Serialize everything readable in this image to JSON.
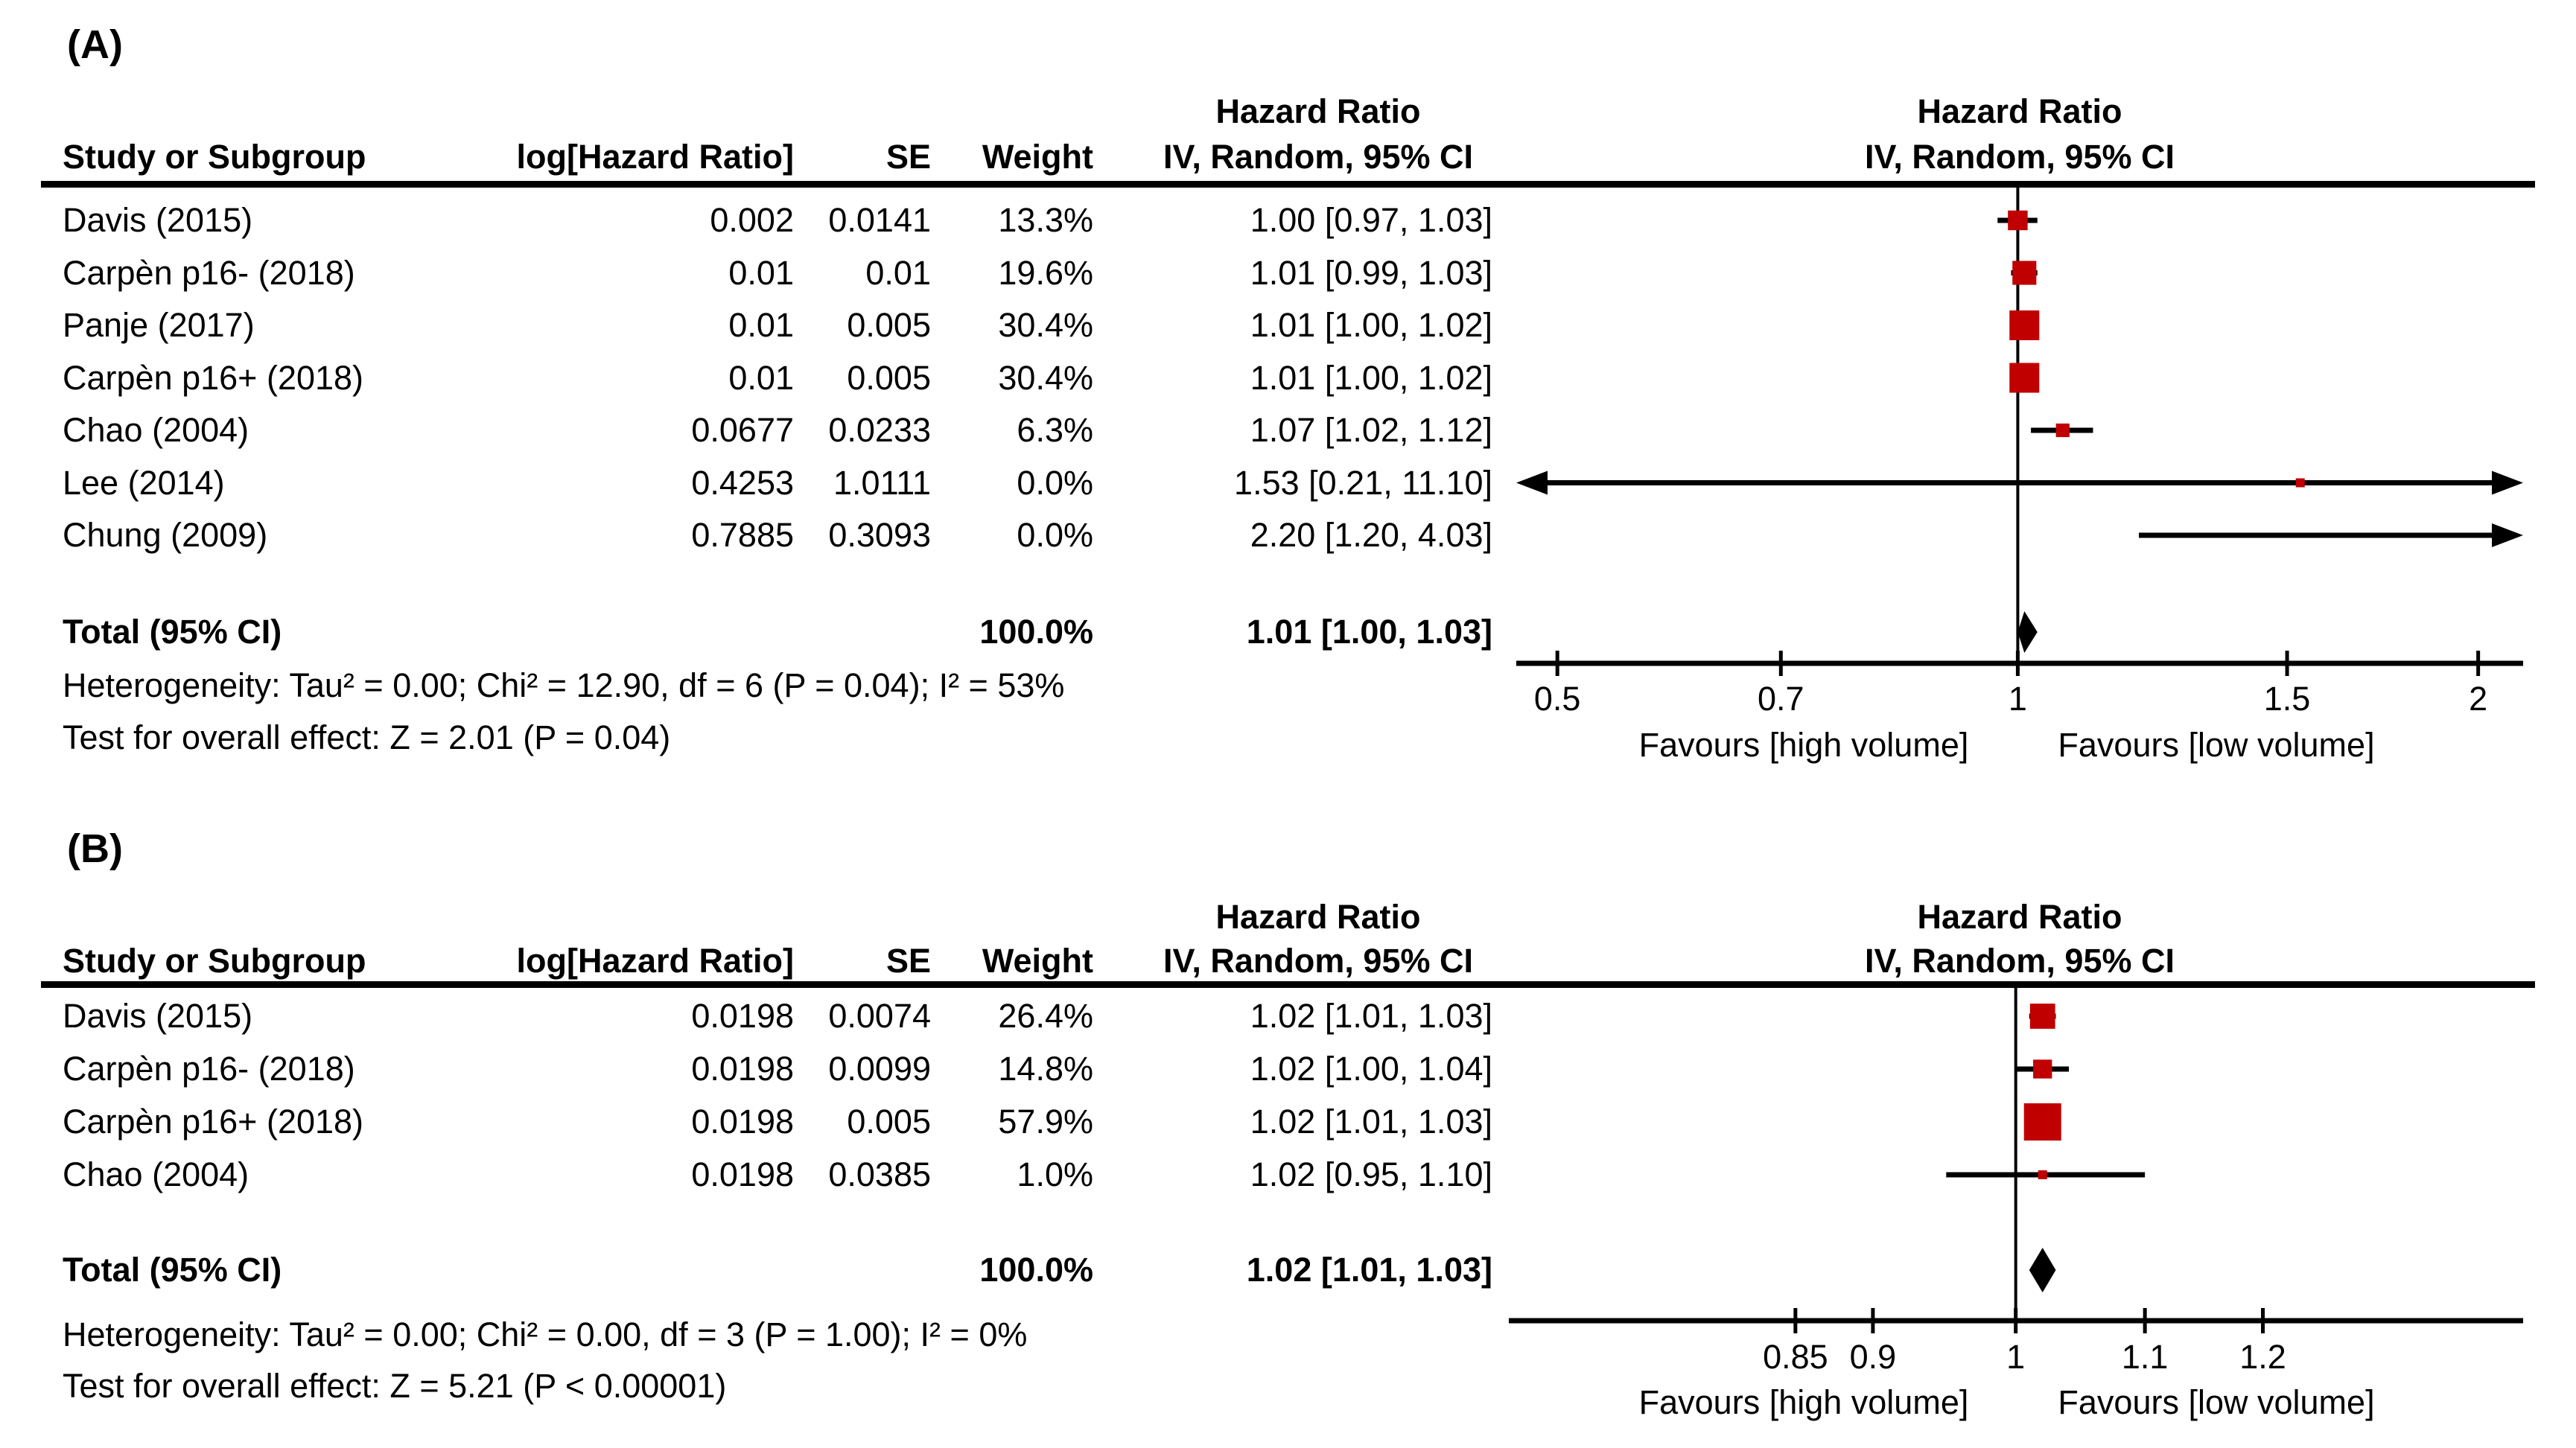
{
  "colors": {
    "marker": "#c00000",
    "diamond": "#000000",
    "line": "#000000",
    "text": "#000000",
    "background": "#ffffff"
  },
  "chart_data": [
    {
      "type": "forest",
      "panel_label": "(A)",
      "effect_header": {
        "line1": "Hazard Ratio",
        "line2": "IV, Random, 95% CI"
      },
      "columns": {
        "study": "Study or Subgroup",
        "log_hr": "log[Hazard Ratio]",
        "se": "SE",
        "weight": "Weight"
      },
      "studies": [
        {
          "name": "Davis (2015)",
          "log_hr": "0.002",
          "se": "0.0141",
          "weight": "13.3%",
          "weight_value": 13.3,
          "ci_label": "1.00 [0.97, 1.03]",
          "hr": 1.0,
          "ci_low": 0.97,
          "ci_high": 1.03
        },
        {
          "name": "Carpèn p16- (2018)",
          "log_hr": "0.01",
          "se": "0.01",
          "weight": "19.6%",
          "weight_value": 19.6,
          "ci_label": "1.01 [0.99, 1.03]",
          "hr": 1.01,
          "ci_low": 0.99,
          "ci_high": 1.03
        },
        {
          "name": "Panje (2017)",
          "log_hr": "0.01",
          "se": "0.005",
          "weight": "30.4%",
          "weight_value": 30.4,
          "ci_label": "1.01 [1.00, 1.02]",
          "hr": 1.01,
          "ci_low": 1.0,
          "ci_high": 1.02
        },
        {
          "name": "Carpèn p16+ (2018)",
          "log_hr": "0.01",
          "se": "0.005",
          "weight": "30.4%",
          "weight_value": 30.4,
          "ci_label": "1.01 [1.00, 1.02]",
          "hr": 1.01,
          "ci_low": 1.0,
          "ci_high": 1.02
        },
        {
          "name": "Chao (2004)",
          "log_hr": "0.0677",
          "se": "0.0233",
          "weight": "6.3%",
          "weight_value": 6.3,
          "ci_label": "1.07 [1.02, 1.12]",
          "hr": 1.07,
          "ci_low": 1.02,
          "ci_high": 1.12
        },
        {
          "name": "Lee (2014)",
          "log_hr": "0.4253",
          "se": "1.0111",
          "weight": "0.0%",
          "weight_value": 0.0,
          "ci_label": "1.53 [0.21, 11.10]",
          "hr": 1.53,
          "ci_low": 0.21,
          "ci_high": 11.1
        },
        {
          "name": "Chung (2009)",
          "log_hr": "0.7885",
          "se": "0.3093",
          "weight": "0.0%",
          "weight_value": 0.0,
          "ci_label": "2.20 [1.20, 4.03]",
          "hr": 2.2,
          "ci_low": 1.2,
          "ci_high": 4.03
        }
      ],
      "total": {
        "label": "Total (95% CI)",
        "weight": "100.0%",
        "ci_label": "1.01 [1.00, 1.03]",
        "hr": 1.01,
        "ci_low": 1.0,
        "ci_high": 1.03
      },
      "heterogeneity": "Heterogeneity: Tau² = 0.00; Chi² = 12.90, df = 6 (P = 0.04); I² = 53%",
      "overall_effect": "Test for overall effect: Z = 2.01 (P = 0.04)",
      "axis": {
        "scale": "log",
        "ticks": [
          0.5,
          0.7,
          1,
          1.5,
          2
        ],
        "tick_labels": [
          "0.5",
          "0.7",
          "1",
          "1.5",
          "2"
        ],
        "hr_min": 0.47,
        "hr_max": 2.14,
        "favours_left": "Favours [high volume]",
        "favours_right": "Favours [low volume]"
      }
    },
    {
      "type": "forest",
      "panel_label": "(B)",
      "effect_header": {
        "line1": "Hazard Ratio",
        "line2": "IV, Random, 95% CI"
      },
      "columns": {
        "study": "Study or Subgroup",
        "log_hr": "log[Hazard Ratio]",
        "se": "SE",
        "weight": "Weight"
      },
      "studies": [
        {
          "name": "Davis (2015)",
          "log_hr": "0.0198",
          "se": "0.0074",
          "weight": "26.4%",
          "weight_value": 26.4,
          "ci_label": "1.02 [1.01, 1.03]",
          "hr": 1.02,
          "ci_low": 1.01,
          "ci_high": 1.03
        },
        {
          "name": "Carpèn p16- (2018)",
          "log_hr": "0.0198",
          "se": "0.0099",
          "weight": "14.8%",
          "weight_value": 14.8,
          "ci_label": "1.02 [1.00, 1.04]",
          "hr": 1.02,
          "ci_low": 1.0,
          "ci_high": 1.04
        },
        {
          "name": "Carpèn p16+ (2018)",
          "log_hr": "0.0198",
          "se": "0.005",
          "weight": "57.9%",
          "weight_value": 57.9,
          "ci_label": "1.02 [1.01, 1.03]",
          "hr": 1.02,
          "ci_low": 1.01,
          "ci_high": 1.03
        },
        {
          "name": "Chao (2004)",
          "log_hr": "0.0198",
          "se": "0.0385",
          "weight": "1.0%",
          "weight_value": 1.0,
          "ci_label": "1.02 [0.95, 1.10]",
          "hr": 1.02,
          "ci_low": 0.95,
          "ci_high": 1.1
        }
      ],
      "total": {
        "label": "Total (95% CI)",
        "weight": "100.0%",
        "ci_label": "1.02 [1.01, 1.03]",
        "hr": 1.02,
        "ci_low": 1.01,
        "ci_high": 1.03
      },
      "heterogeneity": "Heterogeneity: Tau² = 0.00; Chi² = 0.00, df = 3 (P = 1.00); I² = 0%",
      "overall_effect": "Test for overall effect: Z = 5.21 (P < 0.00001)",
      "axis": {
        "scale": "log",
        "ticks": [
          0.85,
          0.9,
          1,
          1.1,
          1.2
        ],
        "tick_labels": [
          "0.85",
          "0.9",
          "1",
          "1.1",
          "1.2"
        ],
        "hr_min": 0.688,
        "hr_max": 1.454,
        "favours_left": "Favours [high volume]",
        "favours_right": "Favours [low volume]"
      }
    }
  ]
}
